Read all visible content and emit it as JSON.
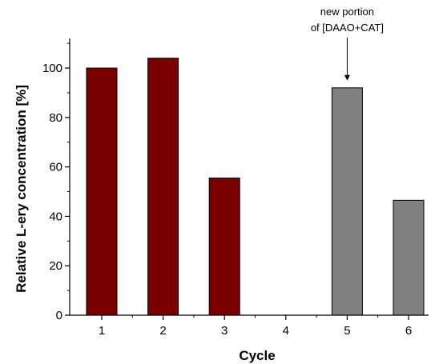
{
  "chart_data": {
    "type": "bar",
    "categories": [
      "1",
      "2",
      "3",
      "4",
      "5",
      "6"
    ],
    "values": [
      100,
      104,
      55.5,
      0,
      92,
      46.5
    ],
    "bar_colors": [
      "#7a0000",
      "#7a0000",
      "#7a0000",
      "#7a0000",
      "#808080",
      "#808080"
    ],
    "xlabel": "Cycle",
    "ylabel": "Relative L-ery concentration [%]",
    "ylim": [
      0,
      112
    ],
    "yticks": [
      0,
      20,
      40,
      60,
      80,
      100
    ],
    "grid": false,
    "annotation": {
      "lines": [
        "new portion",
        "of [DAAO+CAT]"
      ],
      "category": "5"
    }
  }
}
